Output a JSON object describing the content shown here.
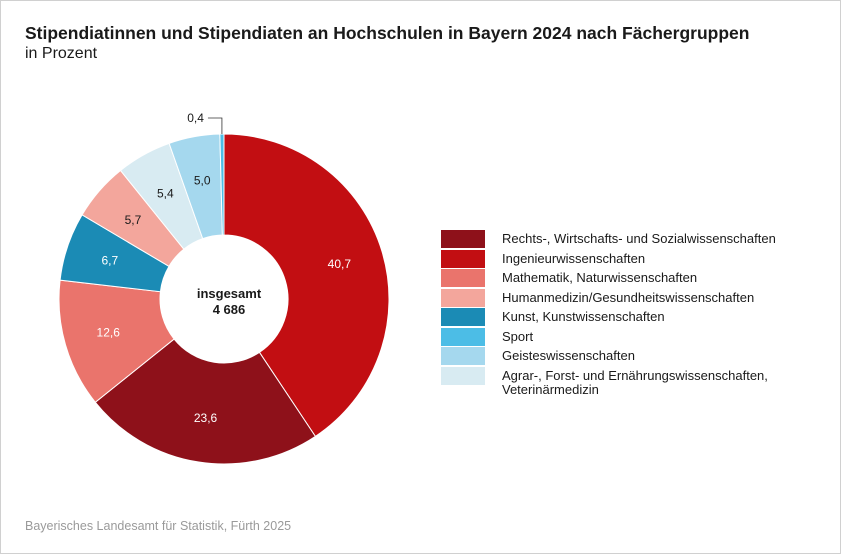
{
  "title": "Stipendiatinnen und Stipendiaten an Hochschulen in Bayern 2024 nach Fächergruppen",
  "subtitle": "in Prozent",
  "source": "Bayerisches Landesamt für Statistik, Fürth 2025",
  "chart_data": {
    "type": "pie",
    "donut": true,
    "center_label": [
      "insgesamt",
      "4 686"
    ],
    "unit": "Prozent",
    "slices": [
      {
        "label": "Ingenieurwissenschaften",
        "value": 40.7,
        "text": "40,7",
        "color": "#c20e12",
        "text_color": "#ffffff"
      },
      {
        "label": "Rechts-, Wirtschafts- und Sozialwissenschaften",
        "value": 23.6,
        "text": "23,6",
        "color": "#8e111a",
        "text_color": "#ffffff"
      },
      {
        "label": "Mathematik, Naturwissenschaften",
        "value": 12.6,
        "text": "12,6",
        "color": "#ea746c",
        "text_color": "#ffffff"
      },
      {
        "label": "Kunst, Kunstwissenschaften",
        "value": 6.7,
        "text": "6,7",
        "color": "#1b8bb5",
        "text_color": "#ffffff"
      },
      {
        "label": "Humanmedizin/Gesundheitswissenschaften",
        "value": 5.7,
        "text": "5,7",
        "color": "#f3a69c",
        "text_color": "#1a1a1a"
      },
      {
        "label": "Agrar-, Forst- und Ernährungswissenschaften, Veterinärmedizin",
        "value": 5.4,
        "text": "5,4",
        "color": "#d8ebf2",
        "text_color": "#1a1a1a"
      },
      {
        "label": "Geisteswissenschaften",
        "value": 5.0,
        "text": "5,0",
        "color": "#a5d8ee",
        "text_color": "#1a1a1a"
      },
      {
        "label": "Sport",
        "value": 0.4,
        "text": "0,4",
        "color": "#4cbde6",
        "text_color": "#1a1a1a",
        "outside": true
      }
    ],
    "legend": {
      "placement": "right",
      "items": [
        {
          "label": "Rechts-, Wirtschafts- und Sozialwissenschaften",
          "color": "#8e111a"
        },
        {
          "label": "Ingenieurwissenschaften",
          "color": "#c20e12"
        },
        {
          "label": "Mathematik, Naturwissenschaften",
          "color": "#ea746c"
        },
        {
          "label": "Humanmedizin/Gesundheitswissenschaften",
          "color": "#f3a69c"
        },
        {
          "label": "Kunst, Kunstwissenschaften",
          "color": "#1b8bb5"
        },
        {
          "label": "Sport",
          "color": "#4cbde6"
        },
        {
          "label": "Geisteswissenschaften",
          "color": "#a5d8ee"
        },
        {
          "label": "Agrar-, Forst- und Ernährungswissenschaften,",
          "label2": "Veterinärmedizin",
          "color": "#d8ebf2"
        }
      ]
    }
  }
}
